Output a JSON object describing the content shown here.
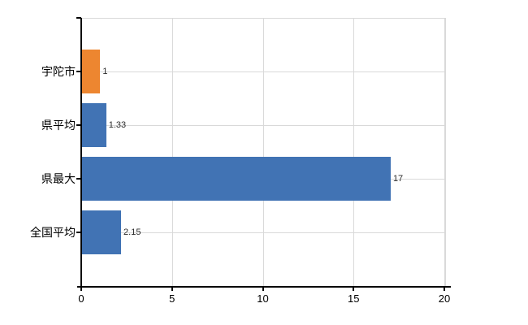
{
  "chart_data": {
    "type": "bar",
    "orientation": "horizontal",
    "title": "",
    "categories": [
      "宇陀市",
      "県平均",
      "県最大",
      "全国平均"
    ],
    "values": [
      1,
      1.33,
      17,
      2.15
    ],
    "value_labels": [
      "1",
      "1.33",
      "17",
      "2.15"
    ],
    "series_colors": [
      "#ED8630",
      "#4173B4",
      "#4173B4",
      "#4173B4"
    ],
    "xlabel": "",
    "ylabel": "",
    "xlim": [
      0,
      20
    ],
    "x_ticks": [
      0,
      5,
      10,
      15,
      20
    ],
    "x_tick_labels": [
      "0",
      "5",
      "10",
      "15",
      "20"
    ],
    "grid": true,
    "legend": false
  },
  "colors": {
    "bar_orange": "#ED8630",
    "bar_blue": "#4173B4",
    "gridline": "#D9D9D9",
    "axis": "#000000",
    "text": "#000000",
    "background": "#FFFFFF"
  }
}
